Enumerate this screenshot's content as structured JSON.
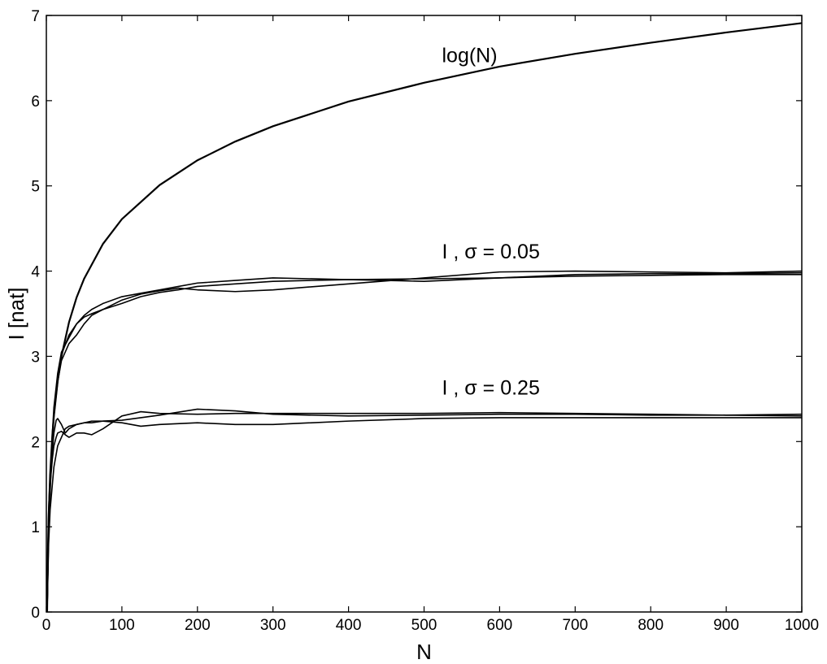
{
  "chart_data": {
    "type": "line",
    "xlabel": "N",
    "ylabel": "I [nat]",
    "xlim": [
      0,
      1000
    ],
    "ylim": [
      0,
      7
    ],
    "xticks": [
      "0",
      "100",
      "200",
      "300",
      "400",
      "500",
      "600",
      "700",
      "800",
      "900",
      "1000"
    ],
    "yticks": [
      "0",
      "1",
      "2",
      "3",
      "4",
      "5",
      "6",
      "7"
    ],
    "grid": false,
    "legend": "none",
    "annotations": [
      {
        "text": "log(N)",
        "x": 500,
        "y": 6.45
      },
      {
        "text": "I , σ = 0.05",
        "x": 500,
        "y": 4.15
      },
      {
        "text": "I , σ = 0.25",
        "x": 500,
        "y": 2.55
      }
    ],
    "series": [
      {
        "group": "log(N)",
        "x": [
          1,
          2,
          3,
          5,
          8,
          10,
          15,
          20,
          30,
          40,
          50,
          75,
          100,
          150,
          200,
          250,
          300,
          400,
          500,
          600,
          700,
          800,
          900,
          1000
        ],
        "y": [
          0,
          0.69,
          1.1,
          1.61,
          2.08,
          2.3,
          2.71,
          3.0,
          3.4,
          3.69,
          3.91,
          4.32,
          4.61,
          5.01,
          5.3,
          5.52,
          5.7,
          5.99,
          6.21,
          6.4,
          6.55,
          6.68,
          6.8,
          6.91
        ]
      },
      {
        "group": "σ = 0.05",
        "x": [
          1,
          3,
          5,
          8,
          10,
          15,
          20,
          30,
          40,
          50,
          60,
          75,
          100,
          125,
          150,
          175,
          200,
          250,
          300,
          400,
          500,
          600,
          700,
          800,
          900,
          1000
        ],
        "y": [
          0,
          1.0,
          1.5,
          2.05,
          2.3,
          2.7,
          2.95,
          3.15,
          3.25,
          3.38,
          3.48,
          3.55,
          3.62,
          3.7,
          3.75,
          3.78,
          3.82,
          3.85,
          3.88,
          3.9,
          3.91,
          3.92,
          3.94,
          3.95,
          3.96,
          3.96
        ]
      },
      {
        "group": "σ = 0.05",
        "x": [
          1,
          3,
          5,
          8,
          10,
          15,
          20,
          30,
          40,
          50,
          60,
          75,
          100,
          125,
          150,
          175,
          200,
          250,
          300,
          400,
          500,
          600,
          700,
          800,
          900,
          1000
        ],
        "y": [
          0,
          0.9,
          1.4,
          2.0,
          2.3,
          2.75,
          3.02,
          3.25,
          3.38,
          3.48,
          3.55,
          3.62,
          3.7,
          3.74,
          3.78,
          3.82,
          3.86,
          3.89,
          3.92,
          3.9,
          3.88,
          3.92,
          3.96,
          3.97,
          3.97,
          3.98
        ]
      },
      {
        "group": "σ = 0.05",
        "x": [
          1,
          3,
          5,
          8,
          10,
          15,
          20,
          30,
          40,
          50,
          60,
          75,
          100,
          125,
          150,
          175,
          200,
          250,
          300,
          400,
          500,
          600,
          700,
          800,
          900,
          1000
        ],
        "y": [
          0,
          1.1,
          1.55,
          2.1,
          2.4,
          2.8,
          3.05,
          3.22,
          3.38,
          3.46,
          3.5,
          3.55,
          3.66,
          3.73,
          3.77,
          3.8,
          3.78,
          3.76,
          3.78,
          3.85,
          3.92,
          3.99,
          4.0,
          3.99,
          3.98,
          4.0
        ]
      },
      {
        "group": "σ = 0.25",
        "x": [
          1,
          3,
          5,
          8,
          10,
          13,
          15,
          20,
          25,
          30,
          40,
          50,
          60,
          75,
          100,
          125,
          150,
          200,
          250,
          300,
          400,
          500,
          600,
          700,
          800,
          900,
          1000
        ],
        "y": [
          0,
          0.8,
          1.2,
          1.5,
          1.7,
          1.85,
          1.95,
          2.05,
          2.15,
          2.18,
          2.2,
          2.22,
          2.24,
          2.24,
          2.22,
          2.18,
          2.2,
          2.22,
          2.2,
          2.2,
          2.24,
          2.27,
          2.28,
          2.28,
          2.28,
          2.28,
          2.28
        ]
      },
      {
        "group": "σ = 0.25",
        "x": [
          1,
          3,
          5,
          8,
          10,
          13,
          15,
          20,
          25,
          30,
          40,
          50,
          60,
          75,
          100,
          125,
          150,
          200,
          250,
          300,
          400,
          500,
          600,
          700,
          800,
          900,
          1000
        ],
        "y": [
          0,
          1.2,
          1.6,
          1.9,
          2.1,
          2.25,
          2.27,
          2.2,
          2.1,
          2.15,
          2.2,
          2.22,
          2.22,
          2.24,
          2.25,
          2.28,
          2.31,
          2.38,
          2.36,
          2.32,
          2.3,
          2.31,
          2.32,
          2.32,
          2.31,
          2.31,
          2.32
        ]
      },
      {
        "group": "σ = 0.25",
        "x": [
          1,
          3,
          5,
          8,
          10,
          13,
          15,
          20,
          25,
          30,
          40,
          50,
          60,
          75,
          100,
          125,
          150,
          200,
          250,
          300,
          400,
          500,
          600,
          700,
          800,
          900,
          1000
        ],
        "y": [
          0,
          1.0,
          1.5,
          1.8,
          1.95,
          2.05,
          2.1,
          2.12,
          2.08,
          2.05,
          2.1,
          2.1,
          2.08,
          2.15,
          2.3,
          2.35,
          2.33,
          2.32,
          2.33,
          2.33,
          2.33,
          2.33,
          2.34,
          2.33,
          2.32,
          2.31,
          2.3
        ]
      }
    ]
  }
}
